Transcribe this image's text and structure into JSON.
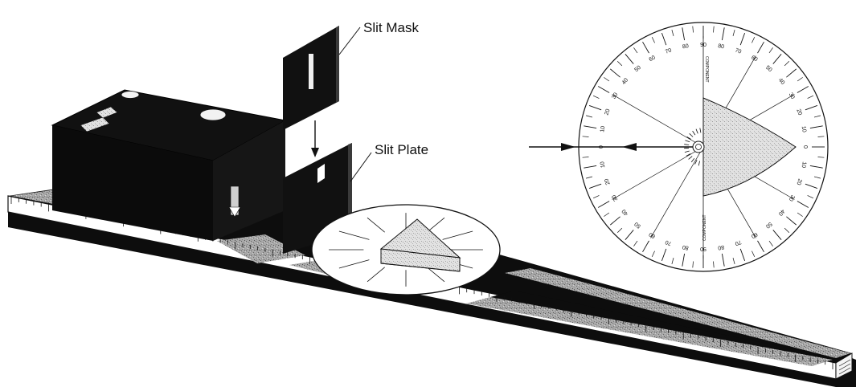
{
  "labels": {
    "slit_mask": "Slit Mask",
    "slit_plate": "Slit Plate"
  },
  "protractor": {
    "top_axis_label": "COMPONENT",
    "bottom_axis_label": "COMPONENT",
    "degree_marks": [
      "0",
      "10",
      "20",
      "30",
      "40",
      "50",
      "60",
      "70",
      "80",
      "90",
      "80",
      "70",
      "60",
      "50",
      "40",
      "30",
      "20",
      "10",
      "0",
      "10",
      "20",
      "30",
      "40",
      "50",
      "60",
      "70",
      "80",
      "90",
      "80",
      "70",
      "60",
      "50",
      "40",
      "30",
      "20",
      "10"
    ]
  },
  "colors": {
    "ink": "#111111",
    "dark_face": "#0d0d0d",
    "speckle_gray": "#9a9a9a",
    "light_fill": "#e6e6e6",
    "paper": "#ffffff"
  }
}
